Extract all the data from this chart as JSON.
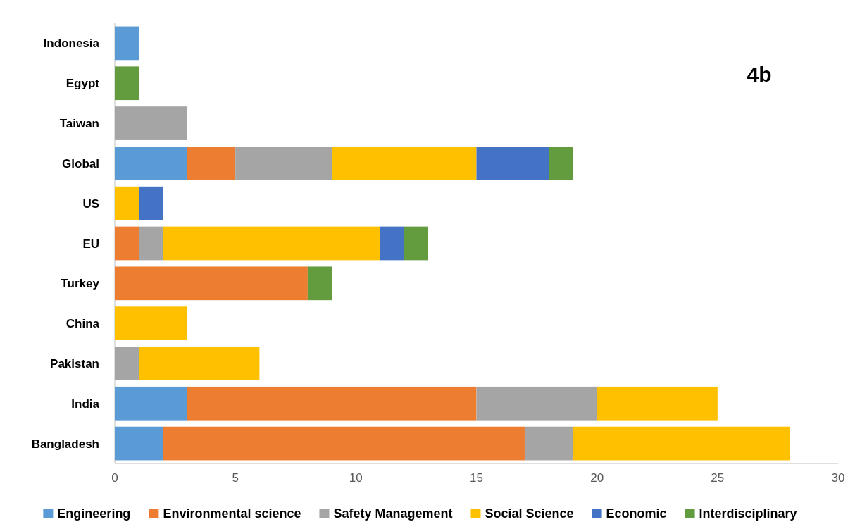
{
  "chart_data": {
    "type": "bar",
    "orientation": "horizontal",
    "stacked": true,
    "categories": [
      "Indonesia",
      "Egypt",
      "Taiwan",
      "Global",
      "US",
      "EU",
      "Turkey",
      "China",
      "Pakistan",
      "India",
      "Bangladesh"
    ],
    "series": [
      {
        "name": "Engineering",
        "color": "#5b9bd5",
        "values": [
          1,
          0,
          0,
          3,
          0,
          0,
          0,
          0,
          0,
          3,
          2
        ]
      },
      {
        "name": "Environmental science",
        "color": "#ed7d31",
        "values": [
          0,
          0,
          0,
          2,
          0,
          1,
          8,
          0,
          0,
          12,
          15
        ]
      },
      {
        "name": "Safety Management",
        "color": "#a5a5a5",
        "values": [
          0,
          0,
          3,
          4,
          0,
          1,
          0,
          0,
          1,
          5,
          2
        ]
      },
      {
        "name": "Social Science",
        "color": "#ffc000",
        "values": [
          0,
          0,
          0,
          6,
          1,
          9,
          0,
          3,
          5,
          5,
          9
        ]
      },
      {
        "name": "Economic",
        "color": "#4472c4",
        "values": [
          0,
          0,
          0,
          3,
          1,
          1,
          0,
          0,
          0,
          0,
          0
        ]
      },
      {
        "name": "Interdisciplinary",
        "color": "#639b3f",
        "values": [
          0,
          1,
          0,
          1,
          0,
          1,
          1,
          0,
          0,
          0,
          0
        ]
      }
    ],
    "xlim": [
      0,
      30
    ],
    "xticks": [
      0,
      5,
      10,
      15,
      20,
      25,
      30
    ],
    "legend": "bottom",
    "annotations": [
      "4b"
    ]
  }
}
